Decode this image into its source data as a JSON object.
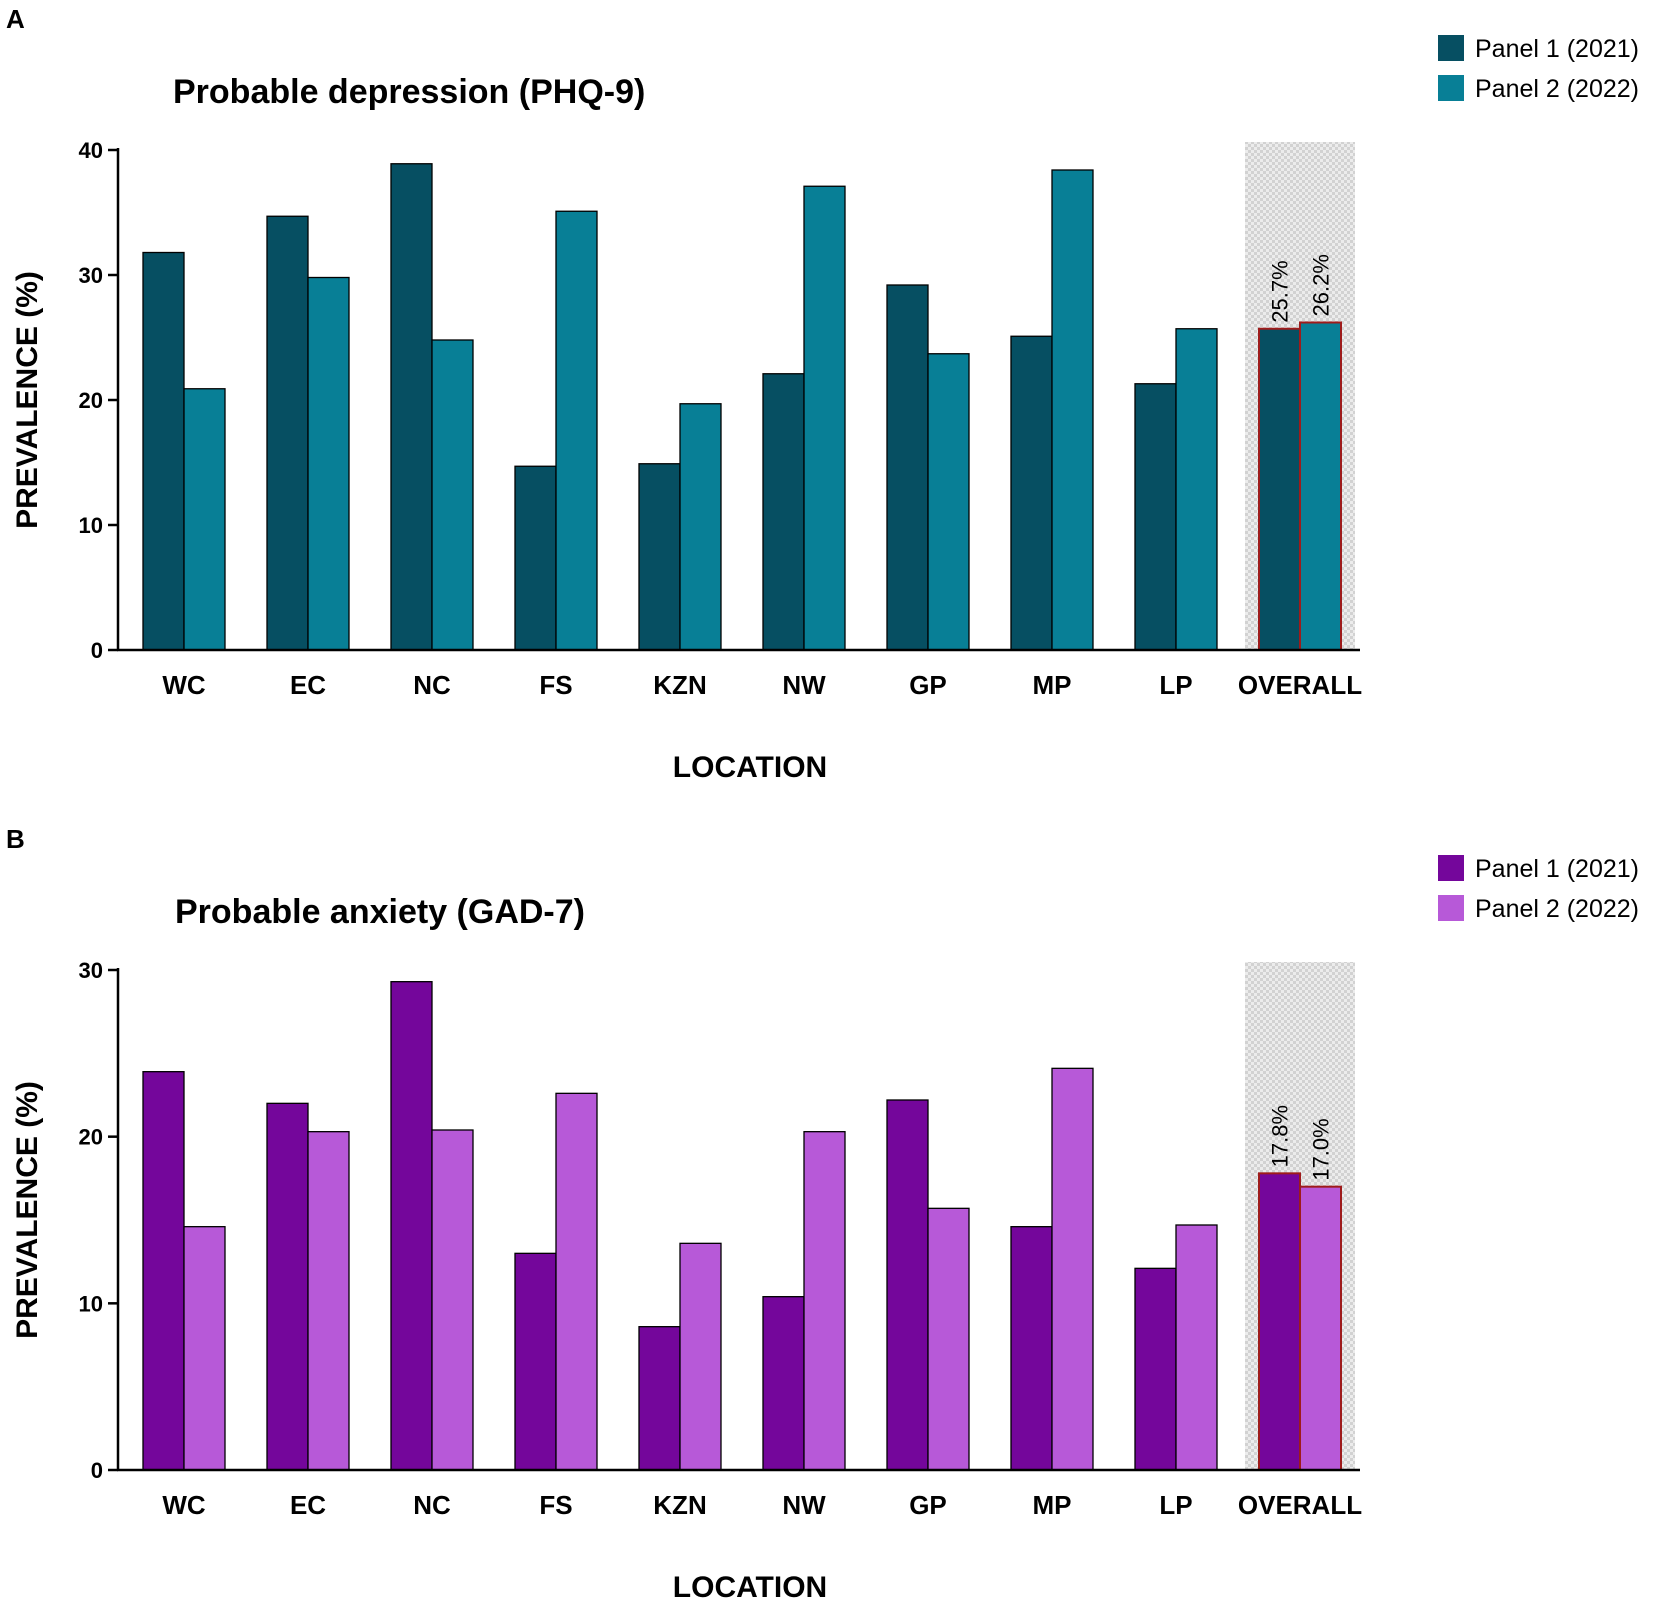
{
  "chart_data": [
    {
      "panel_label": "A",
      "type": "bar",
      "title": "Probable depression (PHQ-9)",
      "xlabel": "LOCATION",
      "ylabel": "PREVALENCE (%)",
      "ylim": [
        0,
        40
      ],
      "yticks": [
        "0",
        "10",
        "20",
        "30",
        "40"
      ],
      "categories": [
        "WC",
        "EC",
        "NC",
        "FS",
        "KZN",
        "NW",
        "GP",
        "MP",
        "LP",
        "OVERALL"
      ],
      "highlight_category": "OVERALL",
      "highlight_color": "#9e1b1b",
      "series": [
        {
          "name": "Panel 1 (2021)",
          "color": "#064f62",
          "values": [
            31.8,
            34.7,
            38.9,
            14.7,
            14.9,
            22.1,
            29.2,
            25.1,
            21.3,
            25.7
          ]
        },
        {
          "name": "Panel 2 (2022)",
          "color": "#087f96",
          "values": [
            20.9,
            29.8,
            24.8,
            35.1,
            19.7,
            37.1,
            23.7,
            38.4,
            25.7,
            26.2
          ]
        }
      ],
      "annotations": [
        "25.7%",
        "26.2%"
      ]
    },
    {
      "panel_label": "B",
      "type": "bar",
      "title": "Probable anxiety (GAD-7)",
      "xlabel": "LOCATION",
      "ylabel": "PREVALENCE (%)",
      "ylim": [
        0,
        30
      ],
      "yticks": [
        "0",
        "10",
        "20",
        "30"
      ],
      "categories": [
        "WC",
        "EC",
        "NC",
        "FS",
        "KZN",
        "NW",
        "GP",
        "MP",
        "LP",
        "OVERALL"
      ],
      "highlight_category": "OVERALL",
      "highlight_color": "#9e1b1b",
      "series": [
        {
          "name": "Panel 1 (2021)",
          "color": "#74069b",
          "values": [
            23.9,
            22.0,
            29.3,
            13.0,
            8.6,
            10.4,
            22.2,
            14.6,
            12.1,
            17.8
          ]
        },
        {
          "name": "Panel 2 (2022)",
          "color": "#b759d8",
          "values": [
            14.6,
            20.3,
            20.4,
            22.6,
            13.6,
            20.3,
            15.7,
            24.1,
            14.7,
            17.0
          ]
        }
      ],
      "annotations": [
        "17.8%",
        "17.0%"
      ]
    }
  ]
}
